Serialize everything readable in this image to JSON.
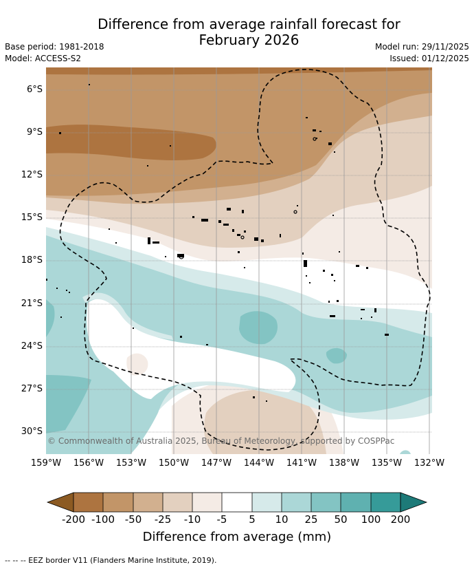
{
  "header": {
    "title_line1": "Difference from average rainfall forecast for",
    "title_line2": "February 2026",
    "base_period": "Base period: 1981-2018",
    "model": "Model: ACCESS-S2",
    "model_run": "Model run: 29/11/2025",
    "issued": "Issued: 01/12/2025"
  },
  "map": {
    "lat_labels": [
      "6°S",
      "9°S",
      "12°S",
      "15°S",
      "18°S",
      "21°S",
      "24°S",
      "27°S",
      "30°S"
    ],
    "lon_labels": [
      "159°W",
      "156°W",
      "153°W",
      "150°W",
      "147°W",
      "144°W",
      "141°W",
      "138°W",
      "135°W",
      "132°W"
    ],
    "copyright": "© Commonwealth of Australia 2025, Bureau of Meteorology, supported by COSPPac"
  },
  "colorbar": {
    "labels": [
      "-200",
      "-100",
      "-50",
      "-25",
      "-10",
      "-5",
      "5",
      "10",
      "25",
      "50",
      "100",
      "200"
    ],
    "colors": [
      "#8c5a22",
      "#ad7440",
      "#c29568",
      "#d2b08f",
      "#e3d0bf",
      "#f4ebe5",
      "#ffffff",
      "#d6eaea",
      "#abd7d7",
      "#83c4c3",
      "#5fb1b0",
      "#369b99",
      "#1d7a78"
    ],
    "title": "Difference from average (mm)"
  },
  "legend": {
    "eez_text": "-- -- -- EEZ border V11 (Flanders Marine Institute, 2019)."
  }
}
